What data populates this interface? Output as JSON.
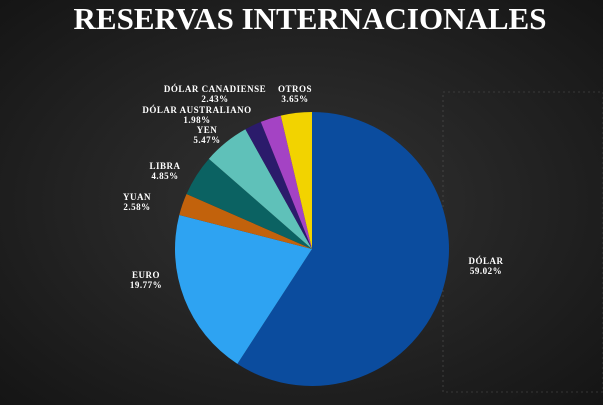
{
  "chart_data": {
    "type": "pie",
    "title": "RESERVAS INTERNACIONALES",
    "categories": [
      "DÓLAR",
      "EURO",
      "YUAN",
      "LIBRA",
      "YEN",
      "DÓLAR AUSTRALIANO",
      "DÓLAR CANADIENSE",
      "OTROS"
    ],
    "values": [
      59.02,
      19.77,
      2.58,
      4.85,
      5.47,
      1.98,
      2.43,
      3.65
    ],
    "value_labels": [
      "59.02%",
      "19.77%",
      "2.58%",
      "4.85%",
      "5.47%",
      "1.98%",
      "2.43%",
      "3.65%"
    ],
    "colors": [
      "#0b4c9e",
      "#2ea3f2",
      "#c2620c",
      "#0b6262",
      "#5fc1b9",
      "#2b1b6b",
      "#a443c4",
      "#f2d300"
    ]
  }
}
